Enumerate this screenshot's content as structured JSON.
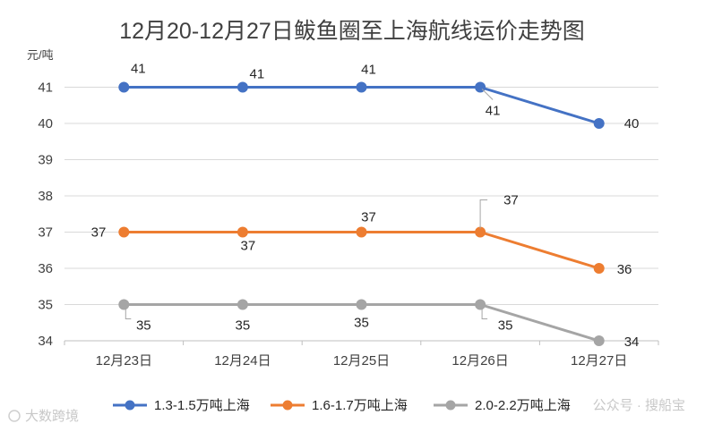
{
  "chart_data": {
    "type": "line",
    "title": "12月20-12月27日鲅鱼圈至上海航线运价走势图",
    "ylabel": "元/吨",
    "xlabel": "",
    "categories": [
      "12月23日",
      "12月24日",
      "12月25日",
      "12月26日",
      "12月27日"
    ],
    "ylim": [
      34,
      42
    ],
    "yticks": [
      34,
      35,
      36,
      37,
      38,
      39,
      40,
      41
    ],
    "grid": true,
    "legend": "bottom",
    "series": [
      {
        "name": "1.3-1.5万吨上海",
        "color": "#4472c4",
        "values": [
          41,
          41,
          41,
          41,
          40
        ],
        "labels": [
          "41",
          "41",
          "41",
          "41",
          "40"
        ]
      },
      {
        "name": "1.6-1.7万吨上海",
        "color": "#ed7d31",
        "values": [
          37,
          37,
          37,
          37,
          36
        ],
        "labels": [
          "37",
          "37",
          "37",
          "37",
          "36"
        ]
      },
      {
        "name": "2.0-2.2万吨上海",
        "color": "#a5a5a5",
        "values": [
          35,
          35,
          35,
          35,
          34
        ],
        "labels": [
          "35",
          "35",
          "35",
          "35",
          "34"
        ]
      }
    ]
  },
  "watermarks": {
    "left": "大数跨境",
    "right": "公众号 · 搜船宝"
  }
}
